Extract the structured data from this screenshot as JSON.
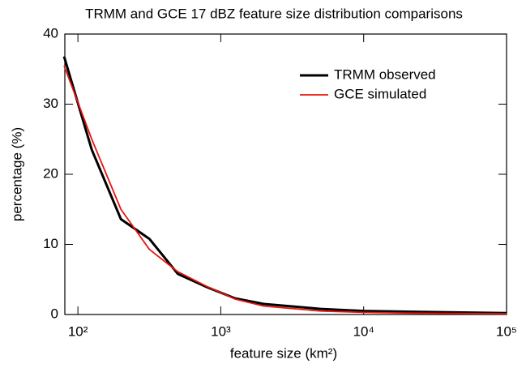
{
  "chart_data": {
    "type": "line",
    "title": "TRMM and GCE 17 dBZ feature size distribution comparisons",
    "xlabel": "feature size (km²)",
    "ylabel": "percentage (%)",
    "x": [
      80,
      125,
      200,
      316,
      500,
      800,
      1260,
      2000,
      5000,
      10000,
      20000,
      100000
    ],
    "series": [
      {
        "name": "TRMM observed",
        "color": "#000000",
        "values": [
          36.8,
          23.5,
          13.6,
          10.8,
          5.8,
          3.9,
          2.3,
          1.5,
          0.8,
          0.5,
          0.4,
          0.2
        ]
      },
      {
        "name": "GCE simulated",
        "color": "#e8140f",
        "values": [
          35.5,
          25,
          15,
          9.3,
          6.1,
          4.0,
          2.2,
          1.2,
          0.5,
          0.3,
          0.2,
          0.1
        ]
      }
    ],
    "xlog": true,
    "xlim": [
      81,
      100000
    ],
    "ylim": [
      0,
      40
    ],
    "xticks": [
      {
        "value": 100,
        "label": "10²"
      },
      {
        "value": 1000,
        "label": "10³"
      },
      {
        "value": 10000,
        "label": "10⁴"
      },
      {
        "value": 100000,
        "label": "10⁵"
      }
    ],
    "yticks": [
      0,
      10,
      20,
      30,
      40
    ],
    "legend": "upper right"
  }
}
